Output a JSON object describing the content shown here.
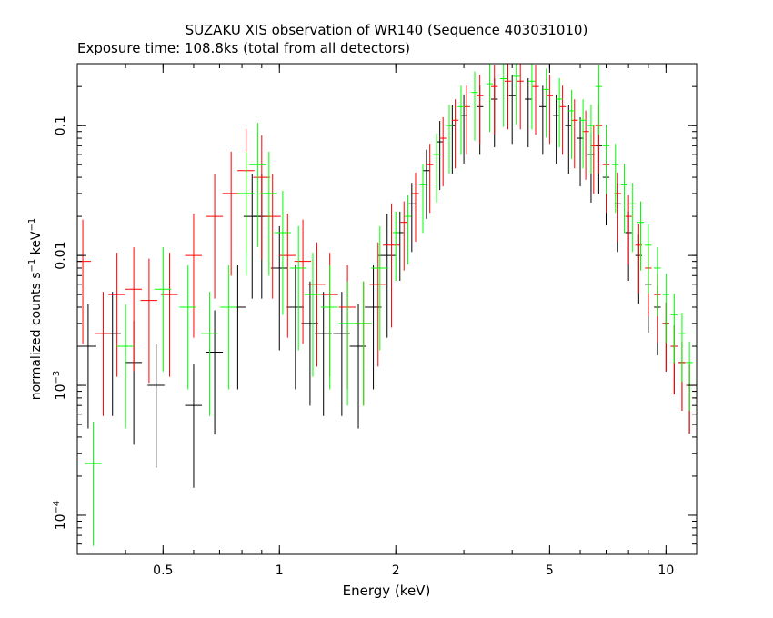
{
  "chart_data": {
    "type": "scatter",
    "title": "SUZAKU XIS observation of WR140 (Sequence 403031010)",
    "subtitle": "Exposure time: 108.8ks (total from all detectors)",
    "xlabel": "Energy (keV)",
    "ylabel_parts": [
      "normalized counts s",
      "−1",
      " keV",
      "−1"
    ],
    "x_scale": "log",
    "y_scale": "log",
    "xlim": [
      0.3,
      12
    ],
    "ylim": [
      5e-05,
      0.3
    ],
    "grid": false,
    "x_ticks": [
      {
        "value": 0.5,
        "label": "0.5"
      },
      {
        "value": 1,
        "label": "1"
      },
      {
        "value": 2,
        "label": "2"
      },
      {
        "value": 5,
        "label": "5"
      },
      {
        "value": 10,
        "label": "10"
      }
    ],
    "y_ticks": [
      {
        "value": 0.1,
        "mant": "0.1",
        "exp": ""
      },
      {
        "value": 0.01,
        "mant": "0.01",
        "exp": ""
      },
      {
        "value": 0.001,
        "mant": "10",
        "exp": "−3"
      },
      {
        "value": 0.0001,
        "mant": "10",
        "exp": "−4"
      }
    ],
    "series": [
      {
        "color": "#000000",
        "x": [
          0.32,
          0.37,
          0.42,
          0.48,
          0.6,
          0.68,
          0.78,
          0.85,
          0.9,
          1.0,
          1.1,
          1.2,
          1.3,
          1.45,
          1.6,
          1.75,
          1.9,
          2.05,
          2.2,
          2.4,
          2.6,
          2.8,
          3.0,
          3.3,
          3.6,
          4.0,
          4.4,
          4.8,
          5.2,
          5.6,
          6.0,
          6.4,
          6.7,
          7.0,
          7.5,
          8.0,
          8.5,
          9.0,
          9.5,
          10.0,
          10.5,
          11.0,
          11.5
        ],
        "y": [
          0.002,
          0.0025,
          0.0015,
          0.001,
          0.0007,
          0.0018,
          0.004,
          0.02,
          0.02,
          0.008,
          0.004,
          0.003,
          0.0025,
          0.0025,
          0.002,
          0.004,
          0.01,
          0.015,
          0.025,
          0.045,
          0.075,
          0.1,
          0.12,
          0.14,
          0.16,
          0.17,
          0.16,
          0.14,
          0.12,
          0.1,
          0.08,
          0.06,
          0.07,
          0.04,
          0.025,
          0.015,
          0.01,
          0.006,
          0.004,
          0.003,
          0.002,
          0.0015,
          0.001
        ]
      },
      {
        "color": "#ff0000",
        "x": [
          0.31,
          0.35,
          0.38,
          0.42,
          0.46,
          0.52,
          0.6,
          0.68,
          0.75,
          0.82,
          0.9,
          0.96,
          1.05,
          1.15,
          1.25,
          1.35,
          1.5,
          1.65,
          1.8,
          1.95,
          2.1,
          2.25,
          2.45,
          2.65,
          2.85,
          3.05,
          3.3,
          3.6,
          3.9,
          4.2,
          4.6,
          5.0,
          5.4,
          5.8,
          6.2,
          6.5,
          6.7,
          7.0,
          7.5,
          8.0,
          8.5,
          9.0,
          9.5,
          10.0,
          10.5,
          11.0,
          11.5,
          12.0
        ],
        "y": [
          0.009,
          0.0025,
          0.005,
          0.0055,
          0.0045,
          0.005,
          0.01,
          0.02,
          0.03,
          0.045,
          0.04,
          0.02,
          0.01,
          0.009,
          0.006,
          0.005,
          0.004,
          0.003,
          0.006,
          0.012,
          0.018,
          0.03,
          0.05,
          0.08,
          0.11,
          0.14,
          0.17,
          0.2,
          0.22,
          0.22,
          0.2,
          0.17,
          0.14,
          0.11,
          0.09,
          0.07,
          0.1,
          0.05,
          0.03,
          0.02,
          0.012,
          0.008,
          0.005,
          0.003,
          0.002,
          0.0015,
          0.001,
          0.0008
        ]
      },
      {
        "color": "#00ff00",
        "x": [
          0.33,
          0.4,
          0.5,
          0.58,
          0.66,
          0.74,
          0.82,
          0.88,
          0.94,
          1.02,
          1.12,
          1.22,
          1.35,
          1.5,
          1.65,
          1.82,
          2.0,
          2.15,
          2.35,
          2.55,
          2.75,
          2.95,
          3.2,
          3.5,
          3.8,
          4.1,
          4.5,
          4.9,
          5.3,
          5.7,
          6.1,
          6.4,
          6.7,
          7.0,
          7.4,
          7.8,
          8.2,
          8.6,
          9.0,
          9.5,
          10.0,
          10.5,
          11.0,
          11.5
        ],
        "y": [
          0.00025,
          0.002,
          0.0055,
          0.004,
          0.0025,
          0.004,
          0.03,
          0.05,
          0.03,
          0.015,
          0.008,
          0.005,
          0.004,
          0.003,
          0.003,
          0.008,
          0.015,
          0.02,
          0.035,
          0.06,
          0.1,
          0.14,
          0.18,
          0.21,
          0.23,
          0.24,
          0.22,
          0.19,
          0.16,
          0.13,
          0.11,
          0.1,
          0.2,
          0.07,
          0.05,
          0.035,
          0.025,
          0.018,
          0.012,
          0.008,
          0.005,
          0.0035,
          0.0025,
          0.0015
        ]
      }
    ]
  }
}
